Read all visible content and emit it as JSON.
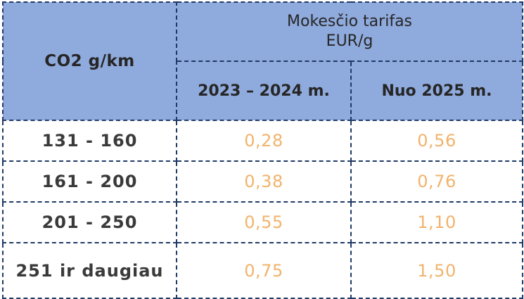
{
  "header": {
    "co2_label": "CO2 g/km",
    "tariff_line1": "Mokesčio tarifas",
    "tariff_line2": "EUR/g",
    "period_1": "2023 – 2024 m.",
    "period_2": "Nuo 2025 m."
  },
  "rows": [
    {
      "co2": "131 - 160",
      "rate_2023_2024": "0,28",
      "rate_2025": "0,56"
    },
    {
      "co2": "161 - 200",
      "rate_2023_2024": "0,38",
      "rate_2025": "0,76"
    },
    {
      "co2": "201 - 250",
      "rate_2023_2024": "0,55",
      "rate_2025": "1,10"
    },
    {
      "co2": "251 ir daugiau",
      "rate_2023_2024": "0,75",
      "rate_2025": "1,50"
    }
  ],
  "colors": {
    "header_bg": "#8faadc",
    "border": "#1f3a66",
    "value_text": "#f2b36b",
    "label_text": "#3a3a3a"
  }
}
